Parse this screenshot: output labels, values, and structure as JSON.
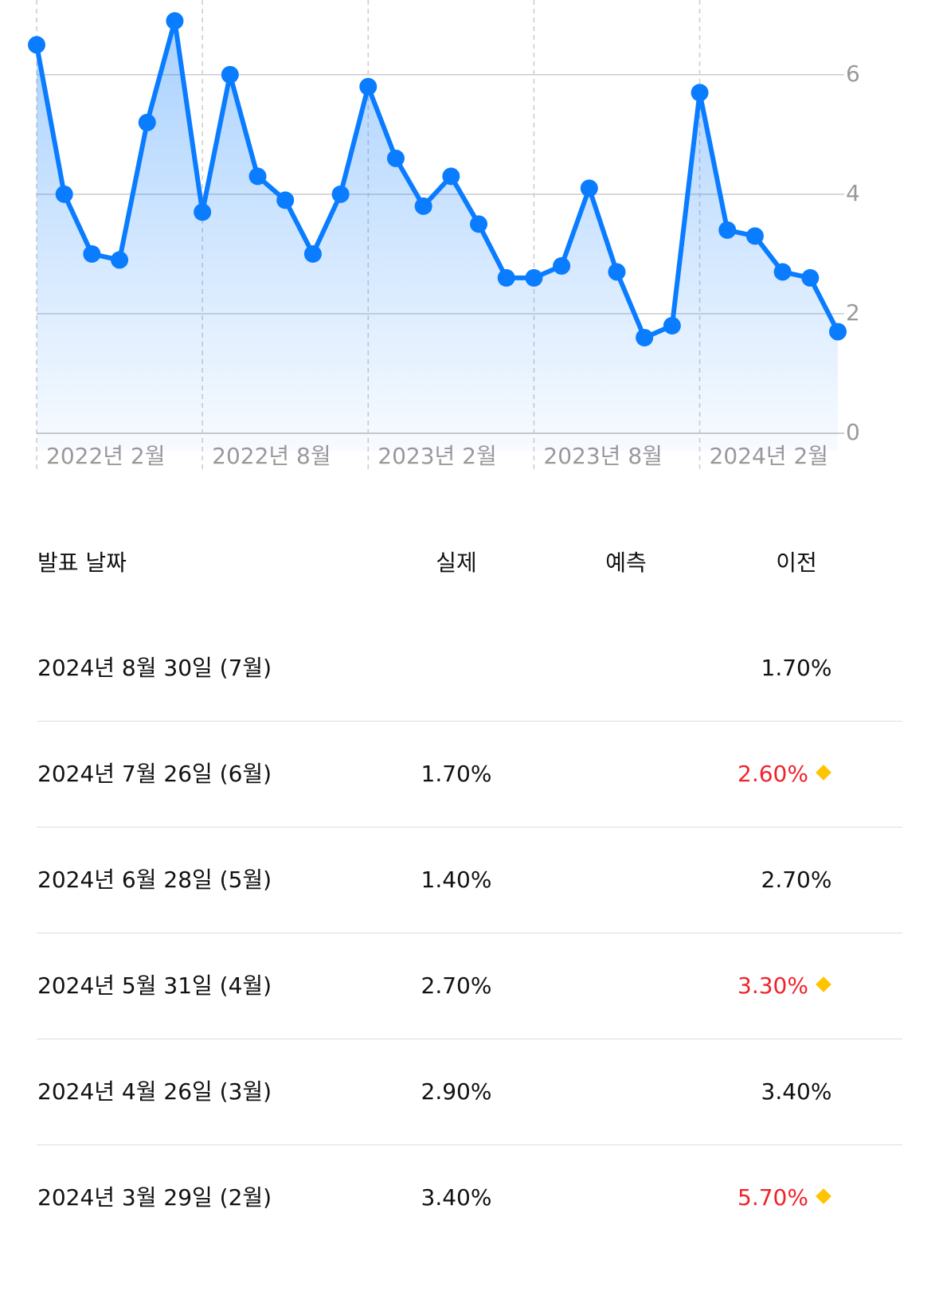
{
  "chart_data": {
    "type": "line",
    "x": [
      "2022-02",
      "2022-03",
      "2022-04",
      "2022-05",
      "2022-06",
      "2022-07",
      "2022-08",
      "2022-09",
      "2022-10",
      "2022-11",
      "2022-12",
      "2023-01",
      "2023-02",
      "2023-03",
      "2023-04",
      "2023-05",
      "2023-06",
      "2023-07",
      "2023-08",
      "2023-09",
      "2023-10",
      "2023-11",
      "2023-12",
      "2024-01",
      "2024-02",
      "2024-03",
      "2024-04",
      "2024-05",
      "2024-06",
      "2024-07"
    ],
    "series": [
      {
        "color": "#0a7cff",
        "values": [
          6.5,
          4.0,
          3.0,
          2.9,
          5.2,
          6.9,
          3.7,
          6.0,
          4.3,
          3.9,
          3.0,
          4.0,
          5.8,
          4.6,
          3.8,
          4.3,
          3.5,
          2.6,
          2.6,
          2.8,
          4.1,
          2.7,
          1.6,
          1.8,
          5.7,
          3.4,
          3.3,
          2.7,
          2.6,
          1.7
        ]
      }
    ],
    "xlim": [
      "2022-02",
      "2024-07"
    ],
    "xticks": [
      {
        "value": "2022-02",
        "label": "2022년 2월"
      },
      {
        "value": "2022-08",
        "label": "2022년 8월"
      },
      {
        "value": "2023-02",
        "label": "2023년 2월"
      },
      {
        "value": "2023-08",
        "label": "2023년 8월"
      },
      {
        "value": "2024-02",
        "label": "2024년 2월"
      }
    ],
    "ylim": [
      0,
      7.25
    ],
    "yticks": [
      0,
      2,
      4,
      6
    ],
    "grid": true
  },
  "table": {
    "headers": [
      "발표 날짜",
      "실제",
      "예측",
      "이전"
    ],
    "rows": [
      {
        "date": "2024년 8월 30일 (7월)",
        "actual": null,
        "forecast": null,
        "previous": "1.70%",
        "revised": false
      },
      {
        "date": "2024년 7월 26일 (6월)",
        "actual": "1.70%",
        "forecast": null,
        "previous": "2.60%",
        "revised": true
      },
      {
        "date": "2024년 6월 28일 (5월)",
        "actual": "1.40%",
        "forecast": null,
        "previous": "2.70%",
        "revised": false
      },
      {
        "date": "2024년 5월 31일 (4월)",
        "actual": "2.70%",
        "forecast": null,
        "previous": "3.30%",
        "revised": true
      },
      {
        "date": "2024년 4월 26일 (3월)",
        "actual": "2.90%",
        "forecast": null,
        "previous": "3.40%",
        "revised": false
      },
      {
        "date": "2024년 3월 29일 (2월)",
        "actual": "3.40%",
        "forecast": null,
        "previous": "5.70%",
        "revised": true
      }
    ]
  }
}
